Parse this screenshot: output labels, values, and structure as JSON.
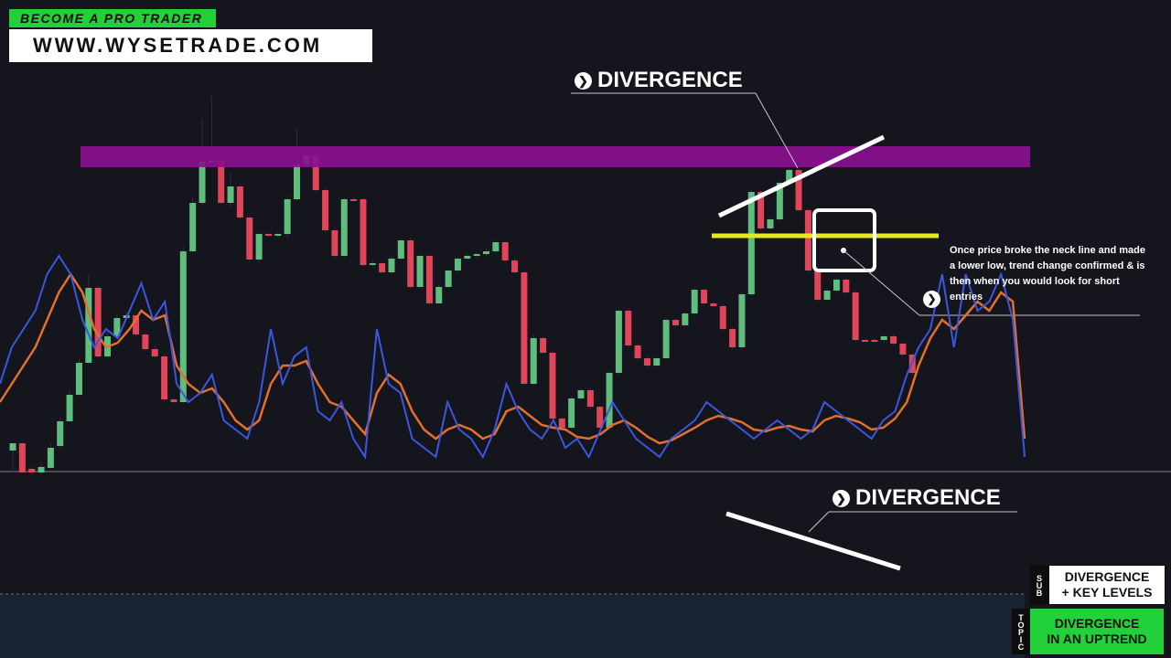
{
  "brand": {
    "tagline": "BECOME A PRO TRADER",
    "url": "WWW.WYSETRADE.COM"
  },
  "annotations": {
    "price_divergence_label": "DIVERGENCE",
    "indicator_divergence_label": "DIVERGENCE",
    "note": "Once price broke the neck line and made a lower low, trend change confirmed & is then when you would look for short entries"
  },
  "badges": {
    "sub": {
      "side": "SUB",
      "line1": "DIVERGENCE",
      "line2": "+ KEY LEVELS"
    },
    "topic": {
      "side": "TOPIC",
      "line1": "DIVERGENCE",
      "line2": "IN AN UPTREND"
    }
  },
  "colors": {
    "background": "#14151d",
    "bull": "#5fbd7e",
    "bear": "#e0455a",
    "resistance_zone": "#8b0f8f",
    "neckline": "#e6ea1c",
    "indicator_fast": "#3b57e0",
    "indicator_slow": "#e2702c",
    "brand_green": "#22d03a"
  },
  "chart_data": {
    "type": "candlestick",
    "candles": [
      [
        493,
        485,
        517,
        485
      ],
      [
        485,
        517,
        517,
        485
      ],
      [
        513,
        517,
        520,
        510
      ],
      [
        517,
        511,
        519,
        505
      ],
      [
        512,
        490,
        513,
        485
      ],
      [
        488,
        461,
        492,
        458
      ],
      [
        461,
        432,
        462,
        427
      ],
      [
        432,
        397,
        434,
        393
      ],
      [
        397,
        315,
        399,
        300
      ],
      [
        315,
        390,
        392,
        313
      ],
      [
        390,
        368,
        392,
        363
      ],
      [
        368,
        348,
        370,
        344
      ],
      [
        348,
        345,
        350,
        341
      ],
      [
        345,
        366,
        368,
        343
      ],
      [
        366,
        382,
        384,
        364
      ],
      [
        382,
        390,
        392,
        378
      ],
      [
        390,
        437,
        440,
        388
      ],
      [
        437,
        440,
        442,
        435
      ],
      [
        440,
        275,
        442,
        270
      ],
      [
        275,
        222,
        276,
        215
      ],
      [
        222,
        177,
        224,
        130
      ],
      [
        177,
        176,
        179,
        105
      ],
      [
        176,
        222,
        224,
        172
      ],
      [
        222,
        204,
        226,
        190
      ],
      [
        204,
        238,
        240,
        202
      ],
      [
        238,
        284,
        286,
        236
      ],
      [
        284,
        256,
        288,
        254
      ],
      [
        256,
        258,
        260,
        254
      ],
      [
        258,
        256,
        260,
        254
      ],
      [
        256,
        218,
        260,
        214
      ],
      [
        218,
        180,
        220,
        140
      ],
      [
        180,
        170,
        182,
        166
      ],
      [
        170,
        208,
        210,
        166
      ],
      [
        208,
        252,
        254,
        206
      ],
      [
        252,
        280,
        283,
        250
      ],
      [
        280,
        218,
        282,
        215
      ],
      [
        218,
        218,
        221,
        215
      ],
      [
        218,
        290,
        292,
        216
      ],
      [
        290,
        288,
        292,
        285
      ],
      [
        288,
        298,
        300,
        286
      ],
      [
        298,
        283,
        300,
        280
      ],
      [
        283,
        263,
        285,
        260
      ],
      [
        263,
        314,
        316,
        260
      ],
      [
        314,
        280,
        316,
        278
      ],
      [
        280,
        332,
        334,
        278
      ],
      [
        332,
        314,
        334,
        312
      ],
      [
        314,
        296,
        316,
        311
      ],
      [
        296,
        283,
        298,
        281
      ],
      [
        283,
        280,
        285,
        278
      ],
      [
        280,
        278,
        282,
        276
      ],
      [
        278,
        275,
        280,
        272
      ],
      [
        275,
        265,
        277,
        262
      ],
      [
        265,
        285,
        287,
        263
      ],
      [
        285,
        298,
        300,
        283
      ],
      [
        298,
        420,
        422,
        296
      ],
      [
        420,
        370,
        422,
        366
      ],
      [
        370,
        386,
        388,
        368
      ],
      [
        386,
        458,
        460,
        384
      ],
      [
        458,
        468,
        470,
        456
      ],
      [
        468,
        436,
        470,
        434
      ],
      [
        436,
        427,
        438,
        425
      ],
      [
        427,
        445,
        447,
        425
      ],
      [
        445,
        468,
        470,
        443
      ],
      [
        468,
        408,
        470,
        406
      ],
      [
        408,
        340,
        410,
        338
      ],
      [
        340,
        378,
        380,
        338
      ],
      [
        378,
        392,
        394,
        376
      ],
      [
        392,
        400,
        402,
        390
      ],
      [
        400,
        392,
        402,
        390
      ],
      [
        392,
        350,
        394,
        348
      ],
      [
        350,
        356,
        358,
        348
      ],
      [
        356,
        343,
        358,
        341
      ],
      [
        343,
        317,
        345,
        315
      ],
      [
        317,
        332,
        334,
        315
      ],
      [
        332,
        335,
        337,
        330
      ],
      [
        335,
        360,
        362,
        333
      ],
      [
        360,
        380,
        382,
        358
      ],
      [
        380,
        322,
        382,
        320
      ],
      [
        322,
        210,
        324,
        208
      ],
      [
        210,
        250,
        252,
        208
      ],
      [
        250,
        240,
        252,
        238
      ],
      [
        240,
        200,
        242,
        198
      ],
      [
        200,
        186,
        202,
        184
      ],
      [
        186,
        230,
        232,
        184
      ],
      [
        230,
        296,
        298,
        228
      ],
      [
        296,
        328,
        330,
        294
      ],
      [
        328,
        318,
        330,
        316
      ],
      [
        318,
        306,
        320,
        304
      ],
      [
        306,
        320,
        322,
        304
      ],
      [
        320,
        372,
        374,
        318
      ],
      [
        372,
        372,
        374,
        370
      ],
      [
        372,
        372,
        374,
        370
      ],
      [
        372,
        368,
        374,
        366
      ],
      [
        368,
        376,
        378,
        366
      ],
      [
        376,
        388,
        390,
        374
      ],
      [
        388,
        408,
        410,
        386
      ]
    ],
    "resistance_zone": [
      160,
      183
    ],
    "neckline": 258,
    "indicator_fast": [
      420,
      380,
      360,
      340,
      300,
      280,
      300,
      350,
      380,
      360,
      370,
      340,
      310,
      350,
      330,
      420,
      440,
      430,
      410,
      460,
      470,
      480,
      440,
      360,
      420,
      390,
      380,
      450,
      460,
      440,
      480,
      500,
      360,
      420,
      430,
      480,
      490,
      500,
      440,
      470,
      480,
      500,
      470,
      420,
      450,
      470,
      480,
      460,
      490,
      480,
      500,
      470,
      440,
      460,
      480,
      490,
      500,
      480,
      470,
      460,
      440,
      450,
      460,
      470,
      480,
      470,
      460,
      470,
      480,
      470,
      440,
      450,
      460,
      470,
      480,
      460,
      450,
      410,
      380,
      360,
      300,
      380,
      300,
      340,
      330,
      300,
      350,
      500
    ],
    "indicator_slow": [
      440,
      420,
      400,
      380,
      350,
      320,
      300,
      320,
      360,
      380,
      375,
      360,
      340,
      350,
      345,
      400,
      420,
      430,
      425,
      440,
      460,
      470,
      460,
      420,
      400,
      400,
      395,
      420,
      440,
      445,
      460,
      475,
      430,
      410,
      420,
      450,
      470,
      480,
      470,
      465,
      470,
      480,
      475,
      450,
      445,
      455,
      465,
      468,
      470,
      478,
      480,
      475,
      465,
      460,
      468,
      478,
      485,
      482,
      475,
      468,
      460,
      455,
      458,
      462,
      470,
      472,
      468,
      466,
      470,
      472,
      460,
      455,
      458,
      462,
      470,
      468,
      458,
      440,
      400,
      370,
      350,
      360,
      345,
      330,
      340,
      320,
      330,
      480
    ]
  }
}
